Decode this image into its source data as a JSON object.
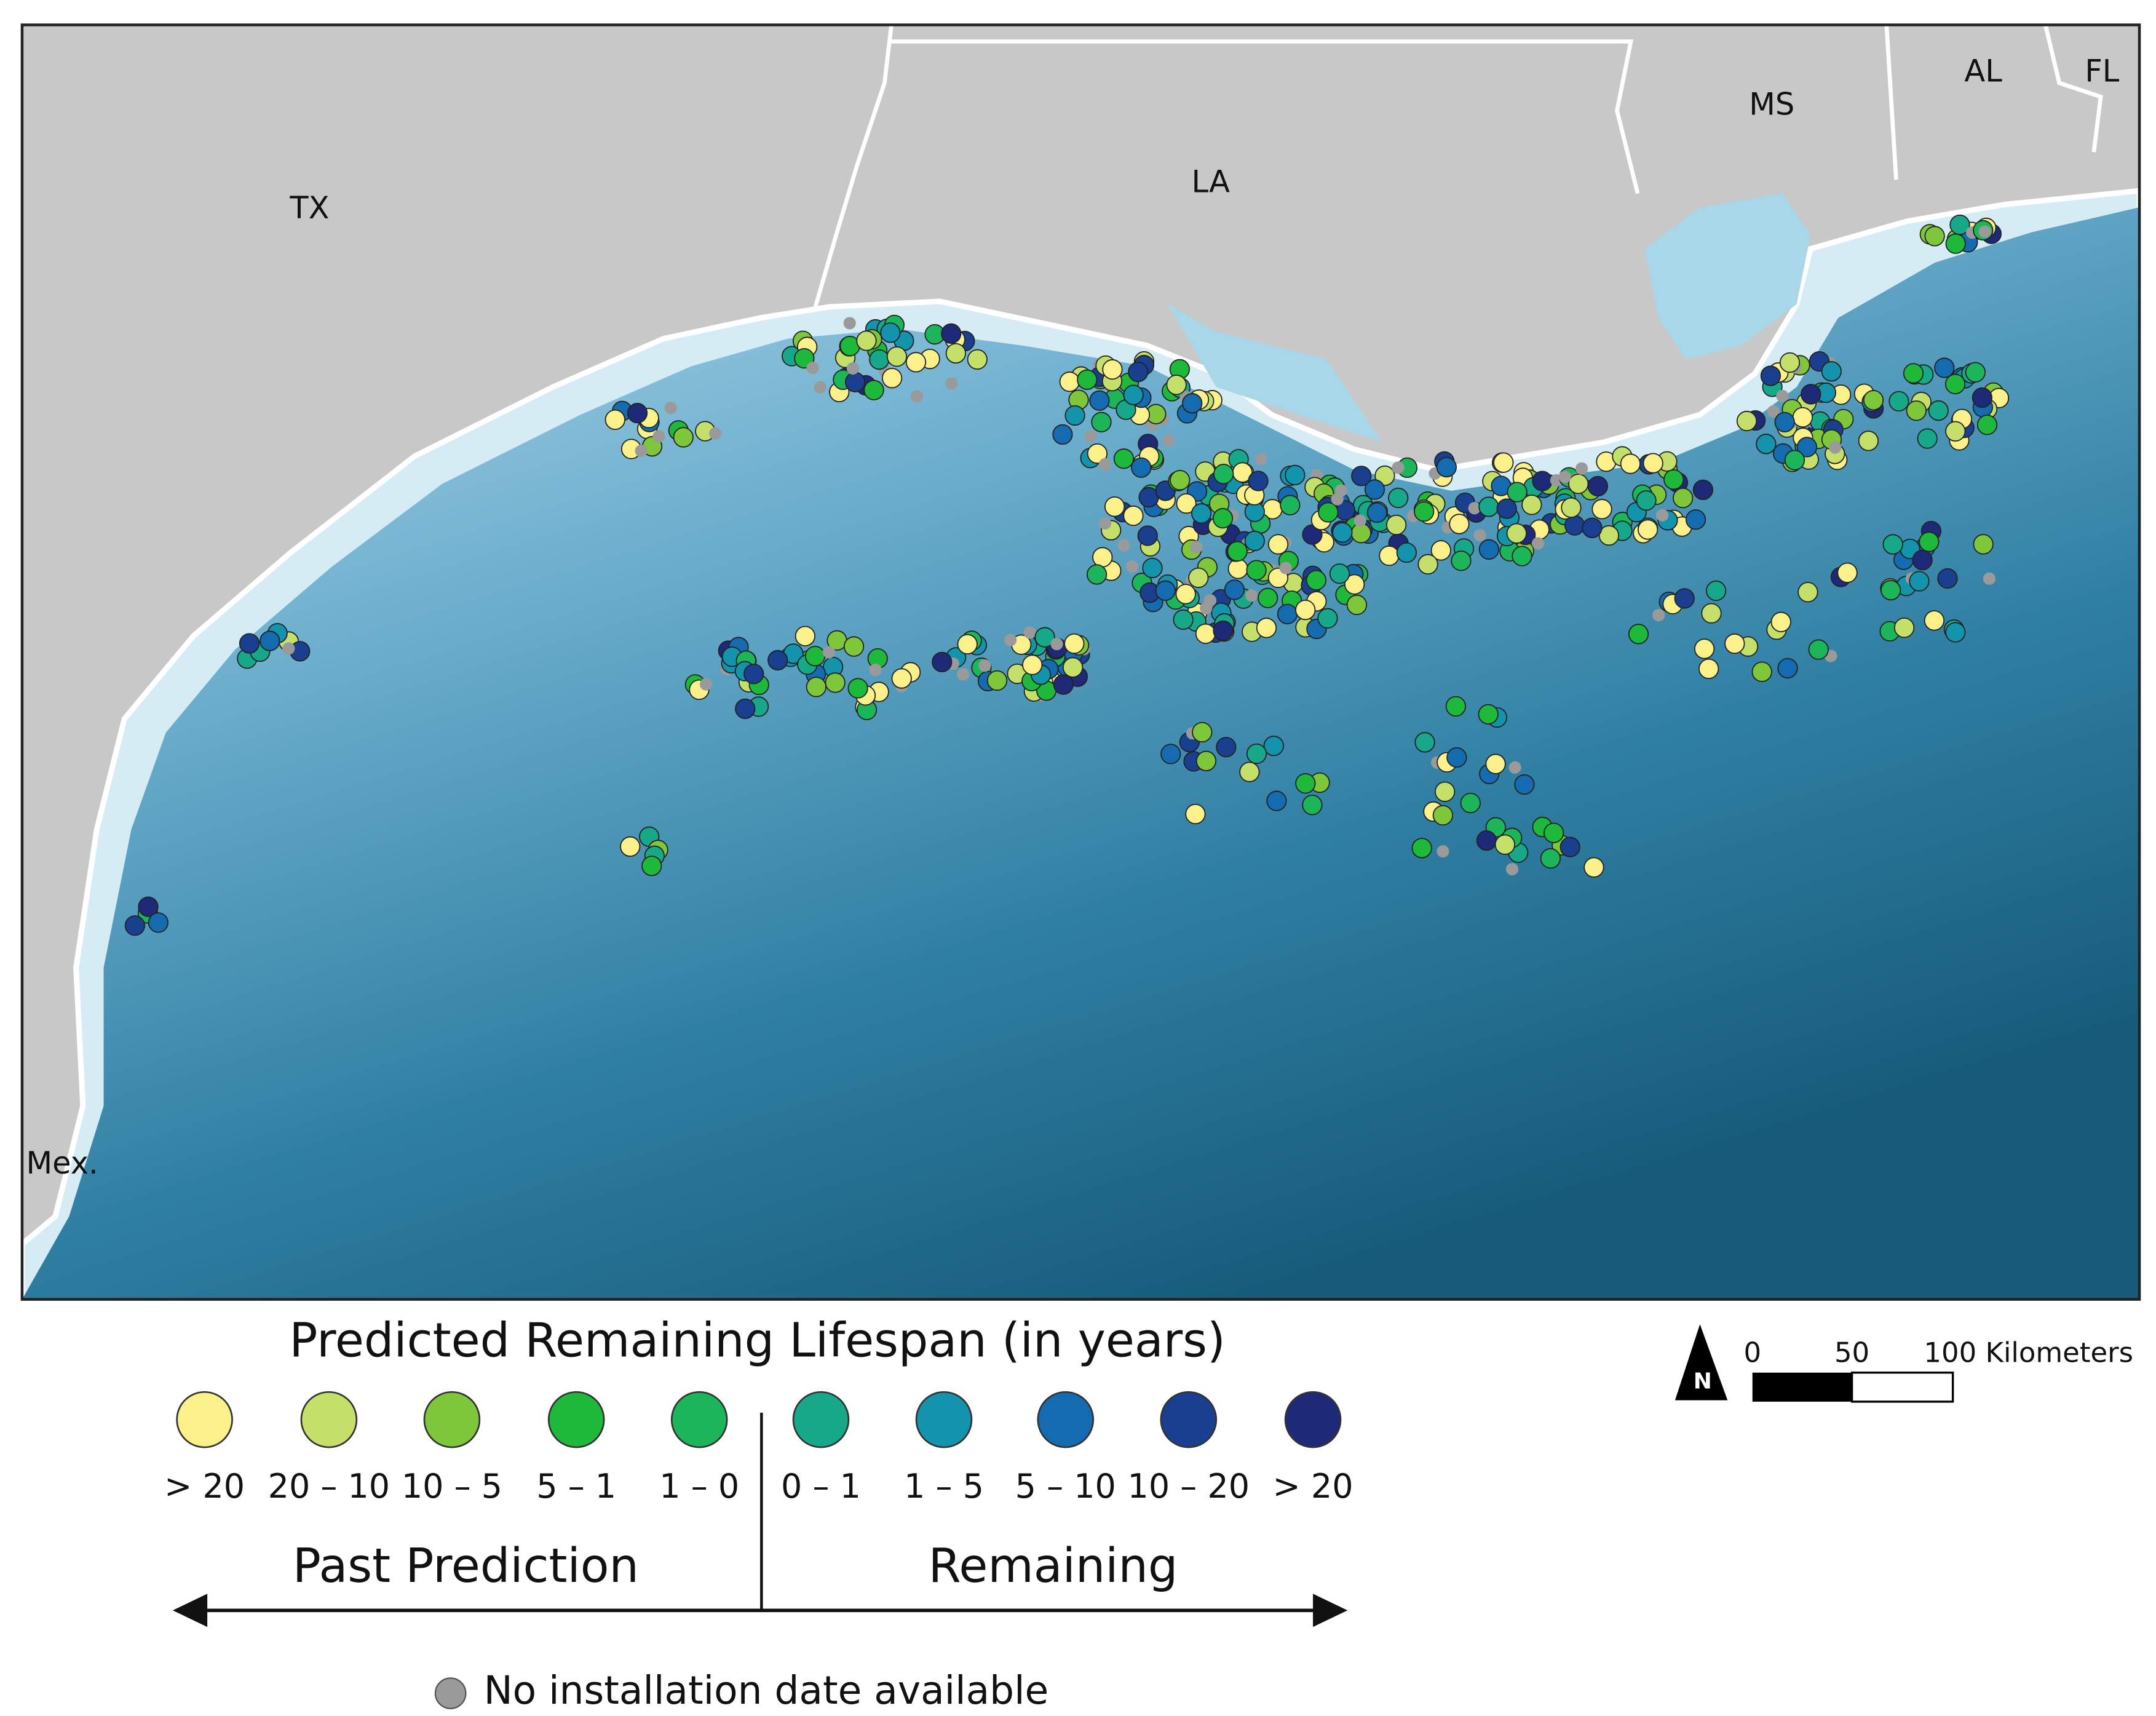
{
  "map": {
    "labels": [
      "TX",
      "LA",
      "MS",
      "AL",
      "FL",
      "Mex."
    ],
    "legend": {
      "title": "Predicted Remaining Lifespan (in years)",
      "items": [
        {
          "label": "> 20",
          "color": "#fbf08a"
        },
        {
          "label": "20 – 10",
          "color": "#c4e06a"
        },
        {
          "label": "10 – 5",
          "color": "#7fc73a"
        },
        {
          "label": "5 – 1",
          "color": "#1eb83a"
        },
        {
          "label": "1 – 0",
          "color": "#1db55a"
        },
        {
          "label": "0 – 1",
          "color": "#17a88a"
        },
        {
          "label": "1 – 5",
          "color": "#1493ad"
        },
        {
          "label": "5 – 10",
          "color": "#146bb0"
        },
        {
          "label": "10 – 20",
          "color": "#1a3f8f"
        },
        {
          "label": "> 20",
          "color": "#1e2a78"
        }
      ],
      "past_label": "Past Prediction",
      "remaining_label": "Remaining",
      "no_data": {
        "label": "No installation date available",
        "color": "#9a9a9a"
      }
    },
    "north": "N",
    "scale_bar": [
      "0",
      "50",
      "100 Kilometers"
    ]
  }
}
